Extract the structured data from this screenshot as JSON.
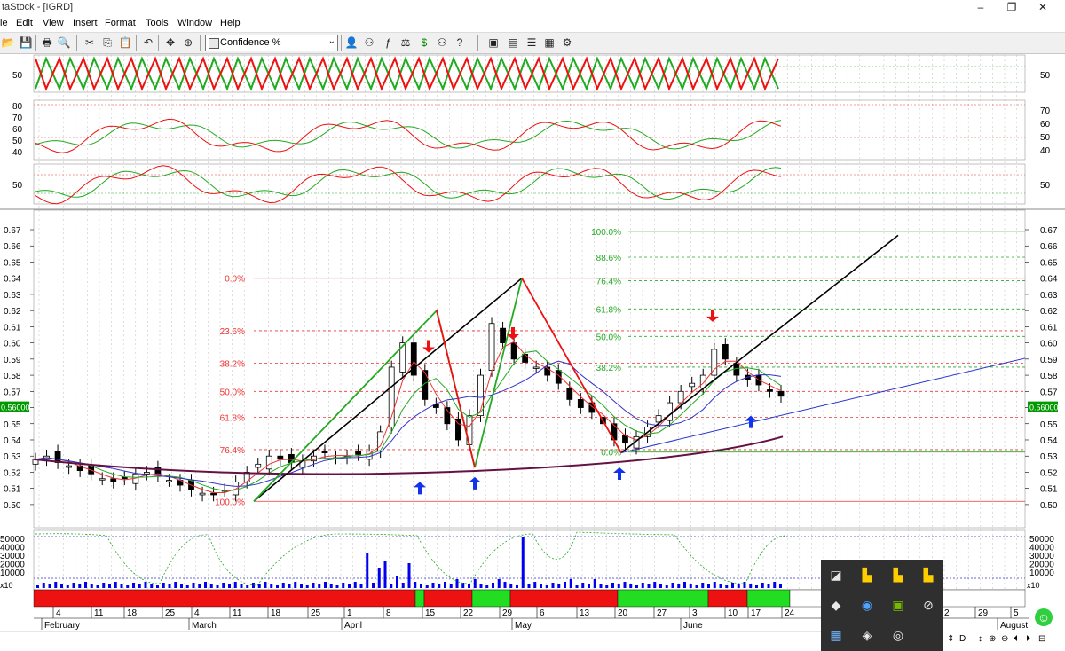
{
  "window": {
    "title": "taStock - [IGRD]",
    "minimize": "–",
    "restore": "❐",
    "close": "✕"
  },
  "menu": [
    "le",
    "Edit",
    "View",
    "Insert",
    "Format",
    "Tools",
    "Window",
    "Help"
  ],
  "mdi": {
    "minimize": "_",
    "restore": "❐",
    "close": "✕"
  },
  "toolbar": {
    "indicator_select": "Confidence %",
    "icons": [
      "open-icon",
      "save-icon",
      "print-icon",
      "print-preview-icon",
      "cut-icon",
      "copy-icon",
      "paste-icon",
      "undo-icon",
      "pan-icon",
      "zoom-icon",
      "user-icon",
      "binoculars-icon",
      "function-icon",
      "balance-icon",
      "dollar-icon",
      "binoculars-question-icon",
      "window-icon",
      "tile-horizontal-icon",
      "tile-vertical-icon",
      "grid-icon",
      "settings-icon"
    ]
  },
  "price_label": "0.56000",
  "colors": {
    "bull": "#22aa22",
    "bear": "#ee1111",
    "price_bg": "#009900",
    "volume": "#0000ee",
    "ma": "#661144"
  },
  "chart_data": {
    "type": "candlestick",
    "y_range": [
      0.495,
      0.675
    ],
    "y_ticks": [
      "0.67",
      "0.66",
      "0.65",
      "0.64",
      "0.63",
      "0.62",
      "0.61",
      "0.60",
      "0.59",
      "0.58",
      "0.57",
      "0.56",
      "0.55",
      "0.54",
      "0.53",
      "0.52",
      "0.51",
      "0.50"
    ],
    "fib_left": {
      "levels": [
        "0.0%",
        "23.6%",
        "38.2%",
        "50.0%",
        "61.8%",
        "76.4%",
        "100.0%"
      ],
      "values": [
        0.64,
        0.6075,
        0.5875,
        0.57,
        0.554,
        0.534,
        0.502
      ]
    },
    "fib_right": {
      "levels": [
        "100.0%",
        "88.6%",
        "76.4%",
        "61.8%",
        "50.0%",
        "38.2%",
        "0.0%"
      ],
      "values": [
        0.669,
        0.653,
        0.6385,
        0.621,
        0.604,
        0.585,
        0.5325
      ]
    },
    "arrows_down": [
      0.594,
      0.602,
      0.613
    ],
    "arrows_up": [
      0.514,
      0.517,
      0.523,
      0.555
    ],
    "month_labels": [
      "February",
      "March",
      "April",
      "May",
      "June",
      "August"
    ],
    "day_labels": [
      "4",
      "11",
      "18",
      "25",
      "4",
      "11",
      "18",
      "25",
      "1",
      "8",
      "15",
      "22",
      "29",
      "6",
      "13",
      "20",
      "27",
      "3",
      "10",
      "17",
      "24",
      "2",
      "29",
      "5"
    ],
    "osc1_ticks": [
      "50"
    ],
    "osc2_ticks_left": [
      "80",
      "70",
      "60",
      "50",
      "40"
    ],
    "osc2_ticks_right": [
      "70",
      "60",
      "50",
      "40"
    ],
    "osc3_ticks": [
      "50"
    ],
    "volume_ticks": [
      "50000",
      "40000",
      "30000",
      "20000",
      "10000"
    ],
    "volume_unit": "x10",
    "trend_bar_colors": [
      "red",
      "green",
      "red",
      "green",
      "red",
      "green",
      "red",
      "green"
    ]
  }
}
